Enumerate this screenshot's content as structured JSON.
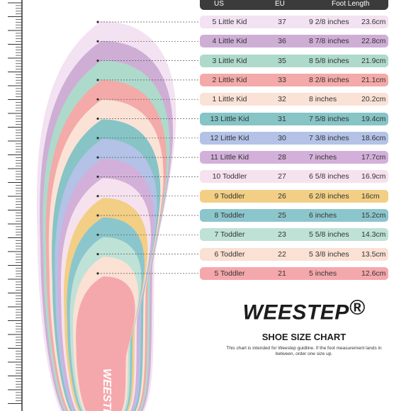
{
  "header": {
    "us": "US",
    "eu": "EU",
    "foot_length": "Foot Length"
  },
  "rows": [
    {
      "us": "5 Little Kid",
      "eu": "37",
      "inches": "9 2/8 inches",
      "cm": "23.6cm",
      "color": "#f3e2f1"
    },
    {
      "us": "4 Little Kid",
      "eu": "36",
      "inches": "8 7/8 inches",
      "cm": "22.8cm",
      "color": "#cfaed6"
    },
    {
      "us": "3 Little Kid",
      "eu": "35",
      "inches": "8 5/8 inches",
      "cm": "21.9cm",
      "color": "#aedacb"
    },
    {
      "us": "2 Little Kid",
      "eu": "33",
      "inches": "8 2/8 inches",
      "cm": "21.1cm",
      "color": "#f3aaa8"
    },
    {
      "us": "1 Little Kid",
      "eu": "32",
      "inches": "8 inches",
      "cm": "20.2cm",
      "color": "#fbe2d6"
    },
    {
      "us": "13 Little Kid",
      "eu": "31",
      "inches": "7 5/8 inches",
      "cm": "19.4cm",
      "color": "#86c4c6"
    },
    {
      "us": "12 Little Kid",
      "eu": "30",
      "inches": "7 3/8 inches",
      "cm": "18.6cm",
      "color": "#b3c2e6"
    },
    {
      "us": "11 Little Kid",
      "eu": "28",
      "inches": "7 inches",
      "cm": "17.7cm",
      "color": "#d3b0d9"
    },
    {
      "us": "10 Toddler",
      "eu": "27",
      "inches": "6 5/8 inches",
      "cm": "16.9cm",
      "color": "#f6e2ee"
    },
    {
      "us": "9 Toddler",
      "eu": "26",
      "inches": "6 2/8 inches",
      "cm": "16cm",
      "color": "#f2cf85"
    },
    {
      "us": "8 Toddler",
      "eu": "25",
      "inches": "6 inches",
      "cm": "15.2cm",
      "color": "#8cc6cd"
    },
    {
      "us": "7 Toddler",
      "eu": "23",
      "inches": "5 5/8 inches",
      "cm": "14.3cm",
      "color": "#bfe2d6"
    },
    {
      "us": "6 Toddler",
      "eu": "22",
      "inches": "5 3/8 inches",
      "cm": "13.5cm",
      "color": "#fbe0d4"
    },
    {
      "us": "5 Toddler",
      "eu": "21",
      "inches": "5 inches",
      "cm": "12.6cm",
      "color": "#f5a8ac"
    }
  ],
  "brand": {
    "name": "WEESTEP",
    "registered": "®",
    "insole_mark": "WEESTEP"
  },
  "chart_title": "SHOE SIZE CHART",
  "note": "This chart is intended for Weestep guidline. If the foot measurement lands in between, order one size up."
}
